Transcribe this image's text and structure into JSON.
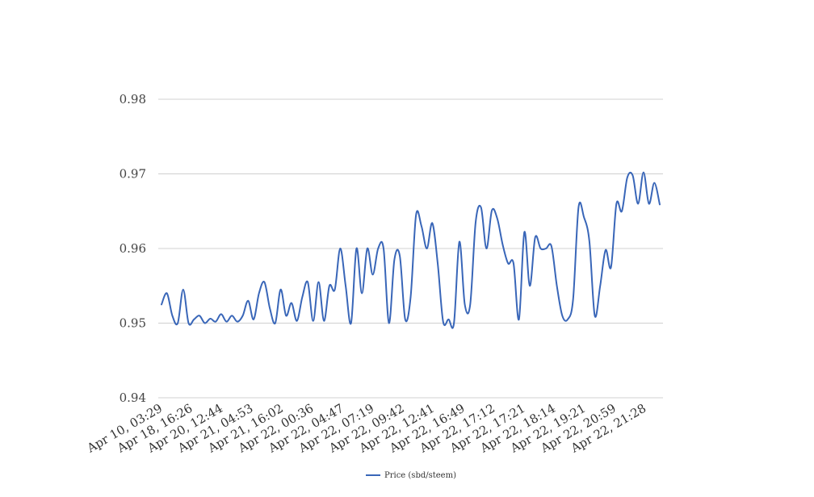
{
  "chart_data": {
    "type": "line",
    "title": "",
    "xlabel": "",
    "ylabel": "",
    "ylim": [
      0.94,
      0.98
    ],
    "yticks": [
      "0.94",
      "0.95",
      "0.96",
      "0.97",
      "0.98"
    ],
    "grid": true,
    "legend_position": "bottom",
    "x_tick_labels": [
      "Apr 10, 03:29",
      "Apr 18, 16:26",
      "Apr 20, 12:44",
      "Apr 21, 04:53",
      "Apr 21, 16:02",
      "Apr 22, 00:36",
      "Apr 22, 04:47",
      "Apr 22, 07:19",
      "Apr 22, 09:42",
      "Apr 22, 12:41",
      "Apr 22, 16:49",
      "Apr 22, 17:12",
      "Apr 22, 17:21",
      "Apr 22, 18:14",
      "Apr 22, 19:21",
      "Apr 22, 20:59",
      "Apr 22, 21:28"
    ],
    "series": [
      {
        "name": "Price (sbd/steem)",
        "color": "#3966b8",
        "values": [
          0.9525,
          0.954,
          0.951,
          0.95,
          0.9545,
          0.95,
          0.9505,
          0.951,
          0.95,
          0.9506,
          0.9502,
          0.9512,
          0.9502,
          0.951,
          0.9502,
          0.951,
          0.953,
          0.9505,
          0.954,
          0.9555,
          0.952,
          0.95,
          0.9545,
          0.951,
          0.9527,
          0.9503,
          0.9535,
          0.9555,
          0.9503,
          0.9555,
          0.9503,
          0.955,
          0.9545,
          0.96,
          0.955,
          0.95,
          0.96,
          0.954,
          0.96,
          0.9565,
          0.96,
          0.96,
          0.95,
          0.9585,
          0.959,
          0.9505,
          0.9535,
          0.9645,
          0.963,
          0.96,
          0.9634,
          0.958,
          0.9502,
          0.9505,
          0.95,
          0.9609,
          0.9525,
          0.9525,
          0.9635,
          0.9655,
          0.96,
          0.9651,
          0.964,
          0.9605,
          0.958,
          0.958,
          0.9505,
          0.9622,
          0.955,
          0.9615,
          0.96,
          0.96,
          0.9603,
          0.955,
          0.951,
          0.9505,
          0.9532,
          0.9655,
          0.9642,
          0.961,
          0.951,
          0.955,
          0.9598,
          0.9575,
          0.966,
          0.965,
          0.9695,
          0.9698,
          0.966,
          0.9702,
          0.966,
          0.9688,
          0.9659
        ]
      }
    ]
  }
}
